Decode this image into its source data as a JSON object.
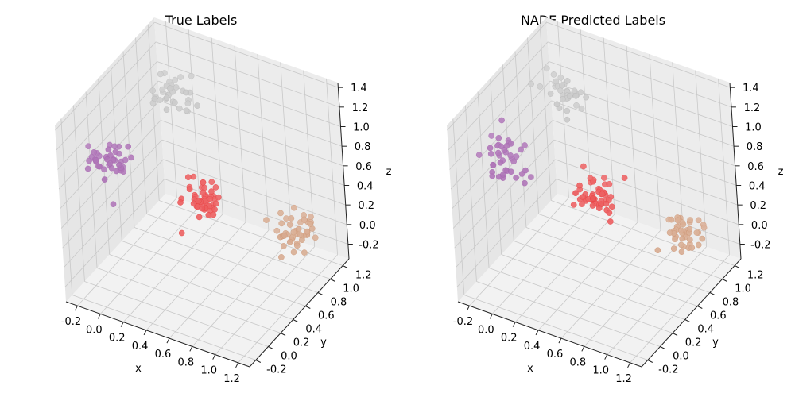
{
  "figure": {
    "background": "#ffffff"
  },
  "chart_data": [
    {
      "type": "scatter",
      "projection": "3d",
      "title": "True Labels",
      "xlabel": "x",
      "ylabel": "y",
      "zlabel": "z",
      "xlim": [
        -0.3,
        1.3
      ],
      "ylim": [
        -0.3,
        1.3
      ],
      "zlim": [
        -0.35,
        1.45
      ],
      "xticks": [
        "-0.2",
        "0.0",
        "0.2",
        "0.4",
        "0.6",
        "0.8",
        "1.0",
        "1.2"
      ],
      "yticks": [
        "-0.2",
        "0.0",
        "0.2",
        "0.4",
        "0.6",
        "0.8",
        "1.0",
        "1.2"
      ],
      "zticks": [
        "-0.2",
        "0.0",
        "0.2",
        "0.4",
        "0.6",
        "0.8",
        "1.0",
        "1.2",
        "1.4"
      ],
      "xtick_values": [
        -0.2,
        0,
        0.2,
        0.4,
        0.6,
        0.8,
        1.0,
        1.2
      ],
      "ytick_values": [
        -0.2,
        0,
        0.2,
        0.4,
        0.6,
        0.8,
        1.0,
        1.2
      ],
      "ztick_values": [
        -0.2,
        0,
        0.2,
        0.4,
        0.6,
        0.8,
        1.0,
        1.2,
        1.4
      ],
      "grid": true,
      "clusters": [
        {
          "color": "#9e9e9e",
          "center": [
            0.0,
            1.0,
            1.0
          ],
          "spread": 0.09,
          "count": 35
        },
        {
          "color": "#984ea3",
          "center": [
            0.0,
            0.0,
            1.0
          ],
          "spread": 0.1,
          "count": 40
        },
        {
          "color": "#e41a1c",
          "center": [
            0.5,
            0.5,
            0.5
          ],
          "spread": 0.08,
          "count": 50
        },
        {
          "color": "#c07a50",
          "center": [
            1.0,
            1.0,
            0.0
          ],
          "spread": 0.08,
          "count": 45
        }
      ]
    },
    {
      "type": "scatter",
      "projection": "3d",
      "title": "NADE Predicted Labels",
      "xlabel": "x",
      "ylabel": "y",
      "zlabel": "z",
      "xlim": [
        -0.3,
        1.3
      ],
      "ylim": [
        -0.3,
        1.3
      ],
      "zlim": [
        -0.35,
        1.45
      ],
      "xticks": [
        "-0.2",
        "0.0",
        "0.2",
        "0.4",
        "0.6",
        "0.8",
        "1.0",
        "1.2"
      ],
      "yticks": [
        "-0.2",
        "0.0",
        "0.2",
        "0.4",
        "0.6",
        "0.8",
        "1.0",
        "1.2"
      ],
      "zticks": [
        "-0.2",
        "0.0",
        "0.2",
        "0.4",
        "0.6",
        "0.8",
        "1.0",
        "1.2",
        "1.4"
      ],
      "xtick_values": [
        -0.2,
        0,
        0.2,
        0.4,
        0.6,
        0.8,
        1.0,
        1.2
      ],
      "ytick_values": [
        -0.2,
        0,
        0.2,
        0.4,
        0.6,
        0.8,
        1.0,
        1.2
      ],
      "ztick_values": [
        -0.2,
        0,
        0.2,
        0.4,
        0.6,
        0.8,
        1.0,
        1.2,
        1.4
      ],
      "grid": true,
      "clusters": [
        {
          "color": "#9e9e9e",
          "center": [
            0.0,
            1.0,
            1.0
          ],
          "spread": 0.09,
          "count": 35
        },
        {
          "color": "#984ea3",
          "center": [
            0.0,
            0.0,
            1.0
          ],
          "spread": 0.1,
          "count": 40
        },
        {
          "color": "#e41a1c",
          "center": [
            0.5,
            0.5,
            0.5
          ],
          "spread": 0.08,
          "count": 50
        },
        {
          "color": "#c07a50",
          "center": [
            1.0,
            1.0,
            0.0
          ],
          "spread": 0.08,
          "count": 45
        }
      ]
    }
  ]
}
